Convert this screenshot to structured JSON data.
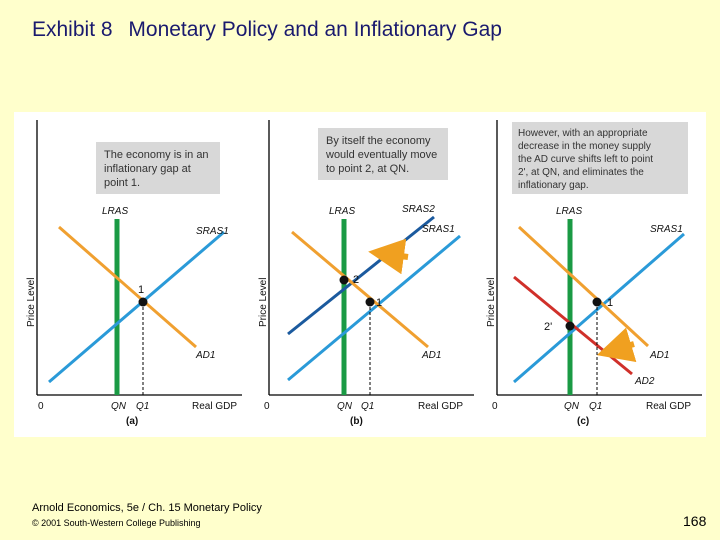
{
  "title": {
    "exhibit": "Exhibit 8",
    "main": "Monetary Policy and an Inflationary Gap"
  },
  "panels": [
    {
      "id": "a",
      "caption": "(a)",
      "note": [
        "The economy is in an",
        "inflationary gap at",
        "point 1."
      ],
      "y_axis_label": "Price Level",
      "x_axis_label": "Real GDP",
      "origin": "0",
      "lras_label": "LRAS",
      "sras_label": "SRAS1",
      "ad_label": "AD1",
      "points": [
        "1"
      ],
      "x_ticks": [
        "QN",
        "Q1"
      ]
    },
    {
      "id": "b",
      "caption": "(b)",
      "note": [
        "By itself the economy",
        "would eventually move",
        "to point 2, at QN."
      ],
      "y_axis_label": "Price Level",
      "x_axis_label": "Real GDP",
      "origin": "0",
      "lras_label": "LRAS",
      "sras2_label": "SRAS2",
      "sras_label": "SRAS1",
      "ad_label": "AD1",
      "points": [
        "2",
        "1"
      ],
      "x_ticks": [
        "QN",
        "Q1"
      ]
    },
    {
      "id": "c",
      "caption": "(c)",
      "note": [
        "However, with an appropriate",
        "decrease in the money supply",
        "the AD curve shifts left to point",
        "2', at QN, and eliminates the",
        "inflationary gap."
      ],
      "y_axis_label": "Price Level",
      "x_axis_label": "Real GDP",
      "origin": "0",
      "lras_label": "LRAS",
      "sras_label": "SRAS1",
      "ad_label": "AD1",
      "ad2_label": "AD2",
      "points": [
        "1",
        "2'"
      ],
      "x_ticks": [
        "QN",
        "Q1"
      ]
    }
  ],
  "footer": {
    "source": "Arnold Economics, 5e / Ch. 15 Monetary Policy",
    "copyright": "© 2001 South-Western College Publishing",
    "page": "168"
  },
  "colors": {
    "lras": "#1a9a44",
    "sras": "#2a9ad8",
    "sras2": "#1b5a9e",
    "ad": "#f0a030",
    "ad2": "#d0302a",
    "note_bg": "#d8d8d8",
    "arrow": "#f0a020"
  }
}
